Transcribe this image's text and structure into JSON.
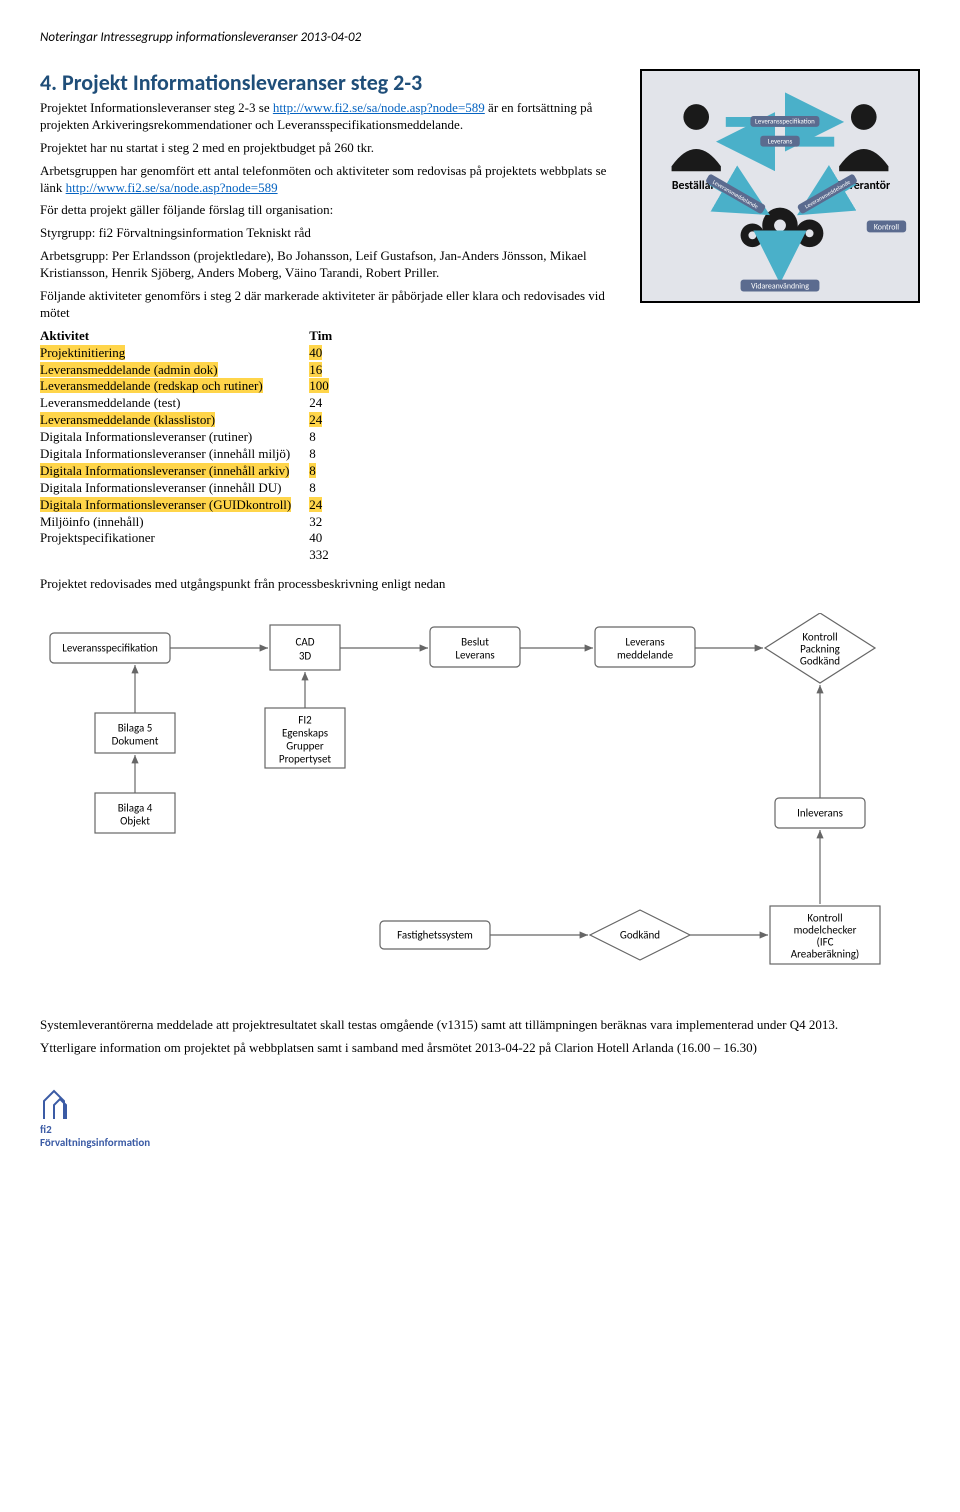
{
  "header_note": "Noteringar Intressegrupp informationsleveranser 2013-04-02",
  "title": "4. Projekt Informationsleveranser steg 2-3",
  "intro": {
    "line1_pre": "Projektet Informationsleveranser steg 2-3 se ",
    "link1": "http://www.fi2.se/sa/node.asp?node=589",
    "line1_post": " är en fortsättning på projekten Arkiveringsrekommendationer och Leveransspecifikationsmeddelande.",
    "line2": "Projektet har nu startat i steg 2 med en projektbudget på 260 tkr.",
    "line3_pre": "Arbetsgruppen har genomfört ett antal telefonmöten och aktiviteter som redovisas på projektets webbplats se länk ",
    "link2": "http://www.fi2.se/sa/node.asp?node=589",
    "line4": "För detta projekt gäller följande förslag till organisation:",
    "line5": "Styrgrupp: fi2 Förvaltningsinformation Tekniskt råd",
    "line6": "Arbetsgrupp: Per Erlandsson (projektledare), Bo Johansson, Leif Gustafson, Jan-Anders Jönsson, Mikael Kristiansson, Henrik Sjöberg, Anders Moberg, Väino Tarandi, Robert Priller.",
    "line7": "Följande aktiviteter genomförs i steg 2 där markerade aktiviteter är påbörjade eller klara och redovisades vid mötet"
  },
  "activities": {
    "head_a": "Aktivitet",
    "head_t": "Tim",
    "rows": [
      {
        "a": "Projektinitiering",
        "t": "40",
        "hl": true
      },
      {
        "a": "Leveransmeddelande (admin dok)",
        "t": "16",
        "hl": true
      },
      {
        "a": "Leveransmeddelande (redskap och rutiner)",
        "t": "100",
        "hl": true
      },
      {
        "a": "Leveransmeddelande (test)",
        "t": "24",
        "hl": false
      },
      {
        "a": "Leveransmeddelande (klasslistor)",
        "t": "24",
        "hl": true
      },
      {
        "a": "Digitala Informationsleveranser (rutiner)",
        "t": "8",
        "hl": false
      },
      {
        "a": "Digitala Informationsleveranser (innehåll miljö)",
        "t": "8",
        "hl": false
      },
      {
        "a": "Digitala Informationsleveranser (innehåll arkiv)",
        "t": "8",
        "hl": true
      },
      {
        "a": "Digitala Informationsleveranser (innehåll  DU)",
        "t": "8",
        "hl": false
      },
      {
        "a": "Digitala Informationsleveranser (GUIDkontroll)",
        "t": "24",
        "hl": true
      },
      {
        "a": "Miljöinfo (innehåll)",
        "t": "32",
        "hl": false
      },
      {
        "a": "Projektspecifikationer",
        "t": "40",
        "hl": false
      }
    ],
    "total": "332"
  },
  "after_table": "Projektet redovisades med utgångspunkt från processbeskrivning enligt nedan",
  "thumb": {
    "bestallare": "Beställare",
    "leverantor": "Leverantör",
    "kontroll": "Kontroll",
    "vidare": "Vidareanvändning",
    "levspec": "Leveransspecifikation",
    "leverans": "Leverans",
    "levmed": "Leveransmeddelande",
    "levmed2": "Leveransmeddelande"
  },
  "flow": {
    "levspec": "Leveransspecifikation",
    "cad1": "CAD",
    "cad2": "3D",
    "beslut1": "Beslut",
    "beslut2": "Leverans",
    "levmed1": "Leverans",
    "levmed2": "meddelande",
    "kontroll1": "Kontroll",
    "kontroll2": "Packning",
    "kontroll3": "Godkänd",
    "bil5a": "Bilaga 5",
    "bil5b": "Dokument",
    "fi2a": "FI2",
    "fi2b": "Egenskaps",
    "fi2c": "Grupper",
    "fi2d": "Propertyset",
    "bil4a": "Bilaga 4",
    "bil4b": "Objekt",
    "inlev": "Inleverans",
    "fast": "Fastighetssystem",
    "godk": "Godkänd",
    "km1": "Kontroll",
    "km2": "modelchecker",
    "km3": "(IFC",
    "km4": "Areaberäkning)"
  },
  "bottom": {
    "p1": "Systemleverantörerna meddelade att projektresultatet skall testas omgående (v1315) samt att tillämpningen beräknas vara implementerad under Q4 2013.",
    "p2": "Ytterligare information om projektet på webbplatsen samt i samband med årsmötet 2013-04-22 på Clarion Hotell Arlanda (16.00 – 16.30)"
  },
  "footer": {
    "brand1": "fi2",
    "brand2": "Förvaltningsinformation"
  }
}
